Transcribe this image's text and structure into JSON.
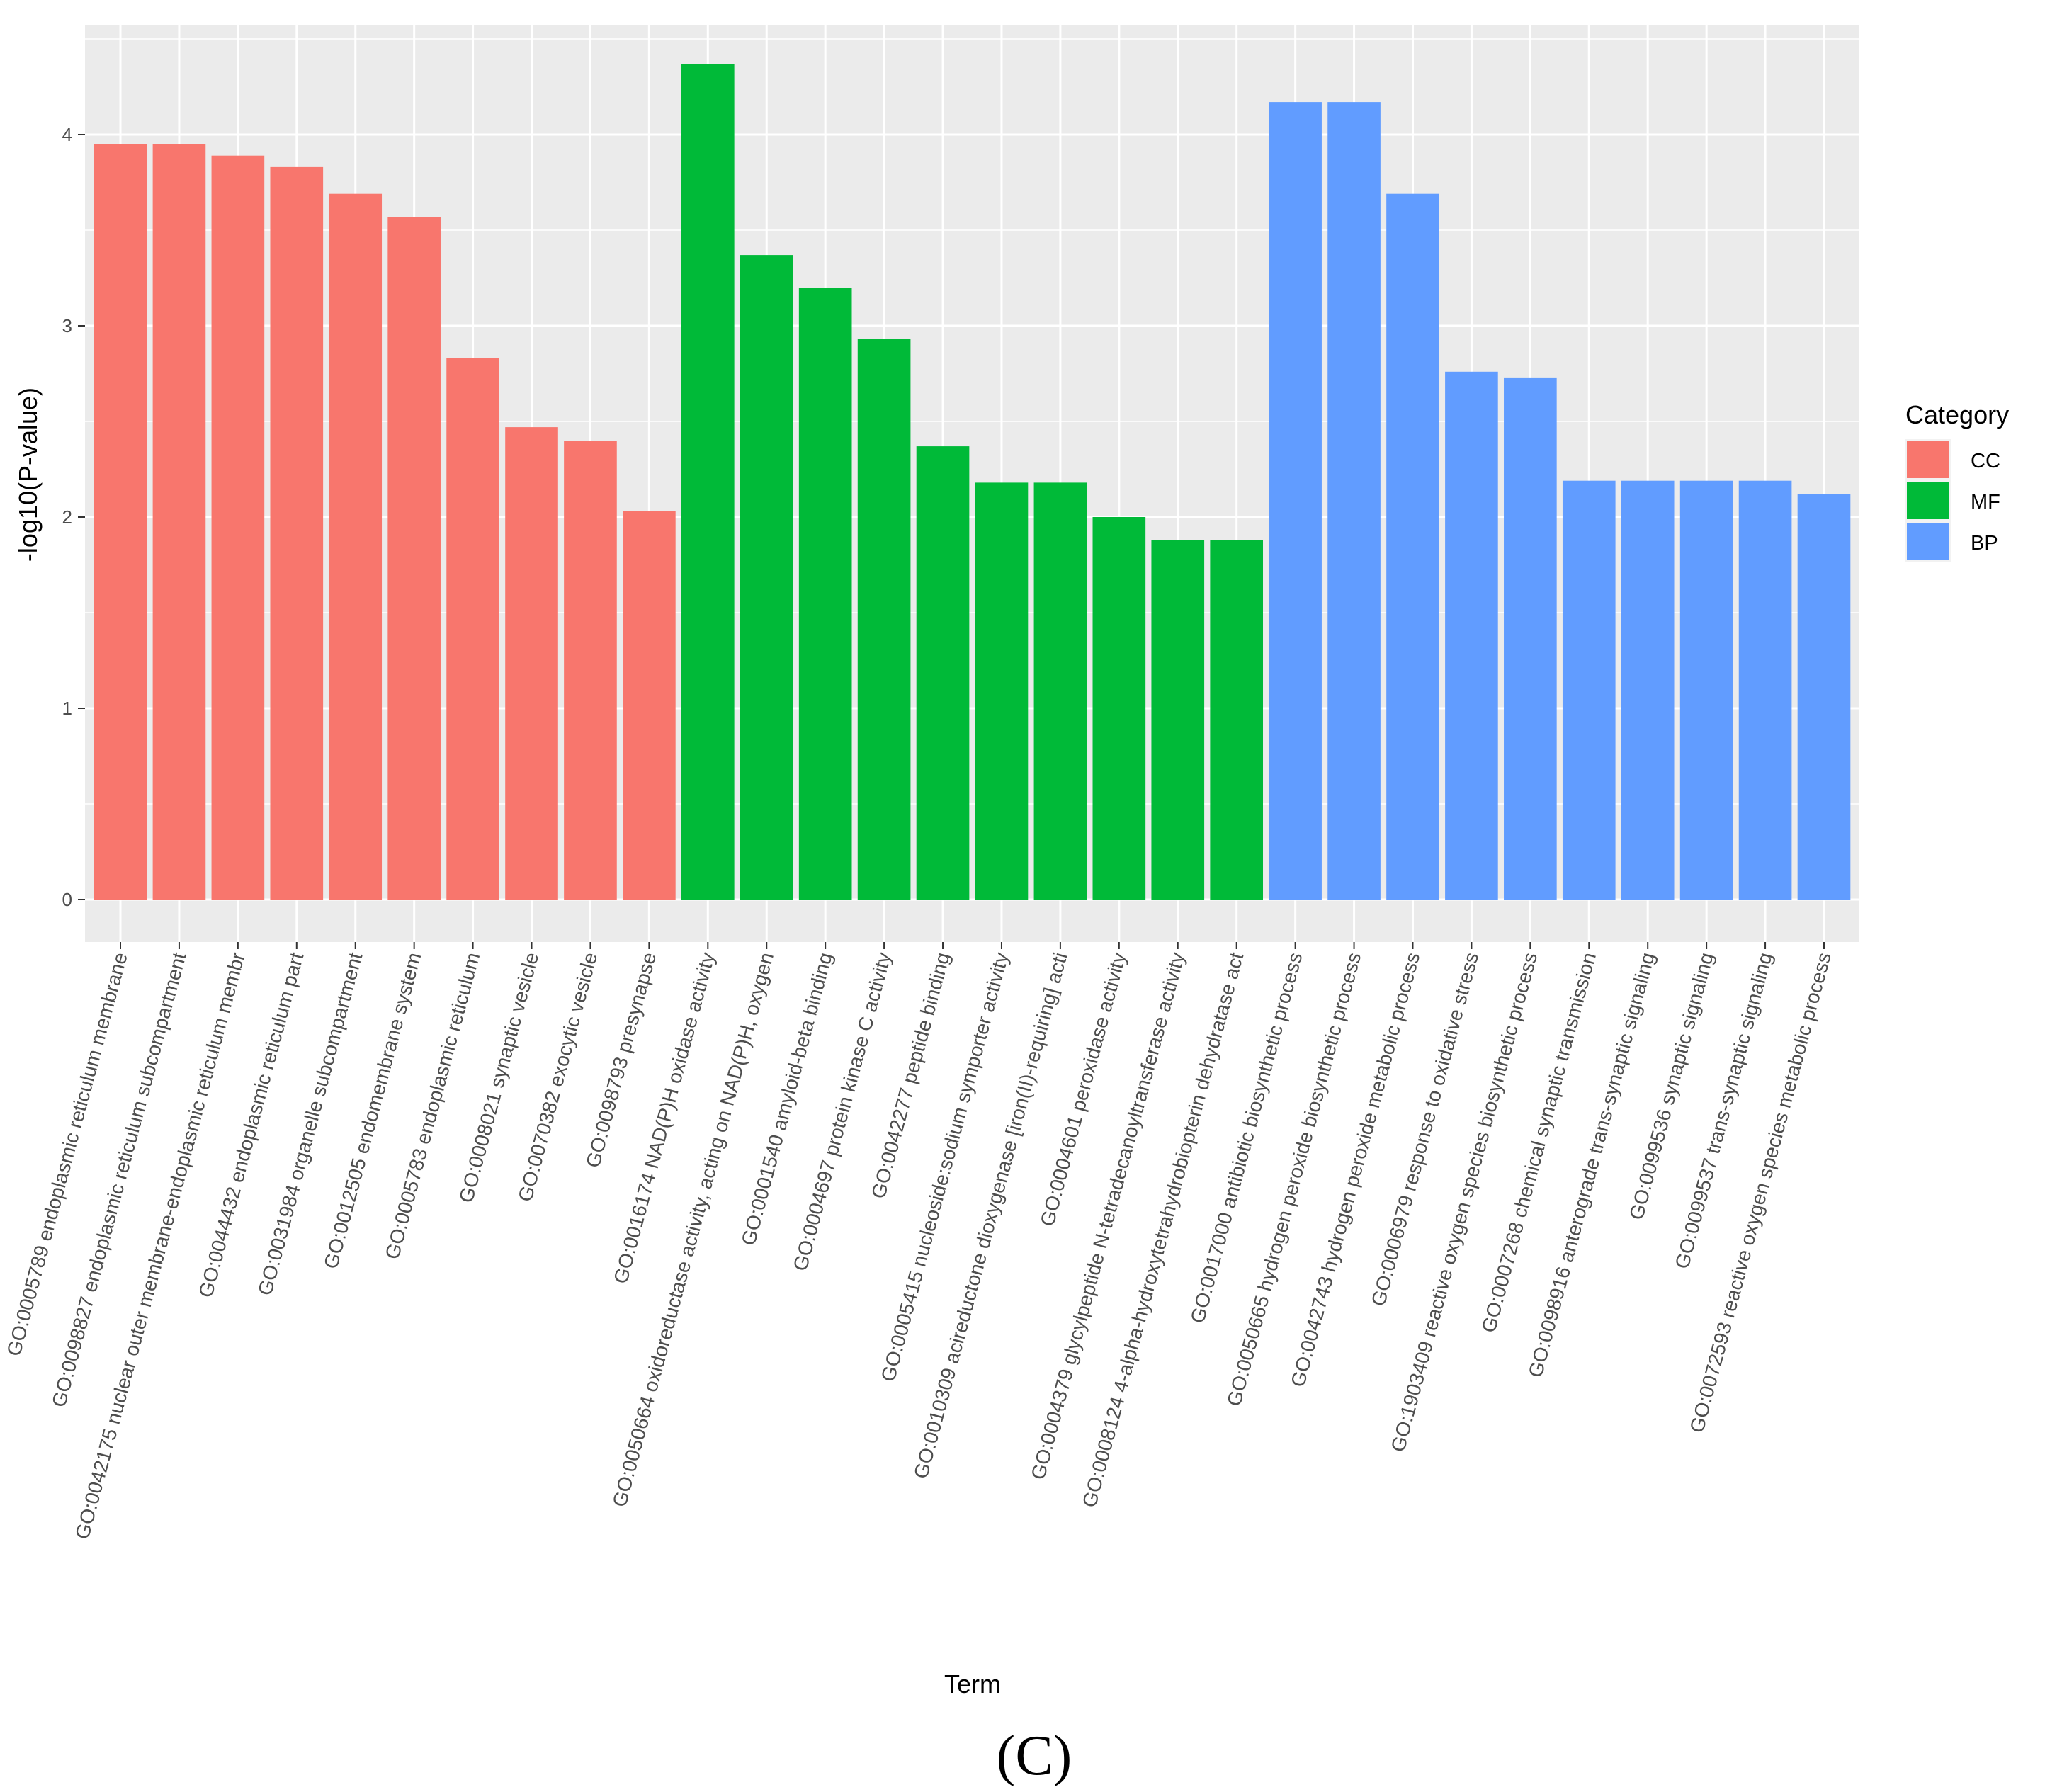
{
  "chart_data": {
    "type": "bar",
    "title": "",
    "xlabel": "Term",
    "ylabel": "-log10(P-value)",
    "ylim": [
      -0.22,
      4.6
    ],
    "yticks": [
      0,
      1,
      2,
      3,
      4
    ],
    "grid": true,
    "legend_title": "Category",
    "legend_position": "right",
    "legend": [
      {
        "name": "CC",
        "color": "#F8766D"
      },
      {
        "name": "MF",
        "color": "#00BA38"
      },
      {
        "name": "BP",
        "color": "#619CFF"
      }
    ],
    "categories": [
      "GO:0005789 endoplasmic reticulum membrane",
      "GO:0098827 endoplasmic reticulum subcompartment",
      "GO:0042175 nuclear outer membrane-endoplasmic reticulum membr",
      "GO:0044432 endoplasmic reticulum part",
      "GO:0031984 organelle subcompartment",
      "GO:0012505 endomembrane system",
      "GO:0005783 endoplasmic reticulum",
      "GO:0008021 synaptic vesicle",
      "GO:0070382 exocytic vesicle",
      "GO:0098793 presynapse",
      "GO:0016174 NAD(P)H oxidase activity",
      "GO:0050664 oxidoreductase activity, acting on NAD(P)H, oxygen",
      "GO:0001540 amyloid-beta binding",
      "GO:0004697 protein kinase C activity",
      "GO:0042277 peptide binding",
      "GO:0005415 nucleoside:sodium symporter activity",
      "GO:0010309 acireductone dioxygenase [iron(II)-requiring] acti",
      "GO:0004601 peroxidase activity",
      "GO:0004379 glycylpeptide N-tetradecanoyltransferase activity",
      "GO:0008124 4-alpha-hydroxytetrahydrobiopterin dehydratase act",
      "GO:0017000 antibiotic biosynthetic process",
      "GO:0050665 hydrogen peroxide biosynthetic process",
      "GO:0042743 hydrogen peroxide metabolic process",
      "GO:0006979 response to oxidative stress",
      "GO:1903409 reactive oxygen species biosynthetic process",
      "GO:0007268 chemical synaptic transmission",
      "GO:0098916 anterograde trans-synaptic signaling",
      "GO:0099536 synaptic signaling",
      "GO:0099537 trans-synaptic signaling",
      "GO:0072593 reactive oxygen species metabolic process"
    ],
    "values": [
      3.95,
      3.95,
      3.89,
      3.83,
      3.69,
      3.57,
      2.83,
      2.47,
      2.4,
      2.03,
      4.37,
      3.37,
      3.2,
      2.93,
      2.37,
      2.18,
      2.18,
      2.0,
      1.88,
      1.88,
      4.17,
      4.17,
      3.69,
      2.76,
      2.73,
      2.19,
      2.19,
      2.19,
      2.19,
      2.12
    ],
    "groups": [
      "CC",
      "CC",
      "CC",
      "CC",
      "CC",
      "CC",
      "CC",
      "CC",
      "CC",
      "CC",
      "MF",
      "MF",
      "MF",
      "MF",
      "MF",
      "MF",
      "MF",
      "MF",
      "MF",
      "MF",
      "BP",
      "BP",
      "BP",
      "BP",
      "BP",
      "BP",
      "BP",
      "BP",
      "BP",
      "BP"
    ]
  },
  "caption": "(C)"
}
